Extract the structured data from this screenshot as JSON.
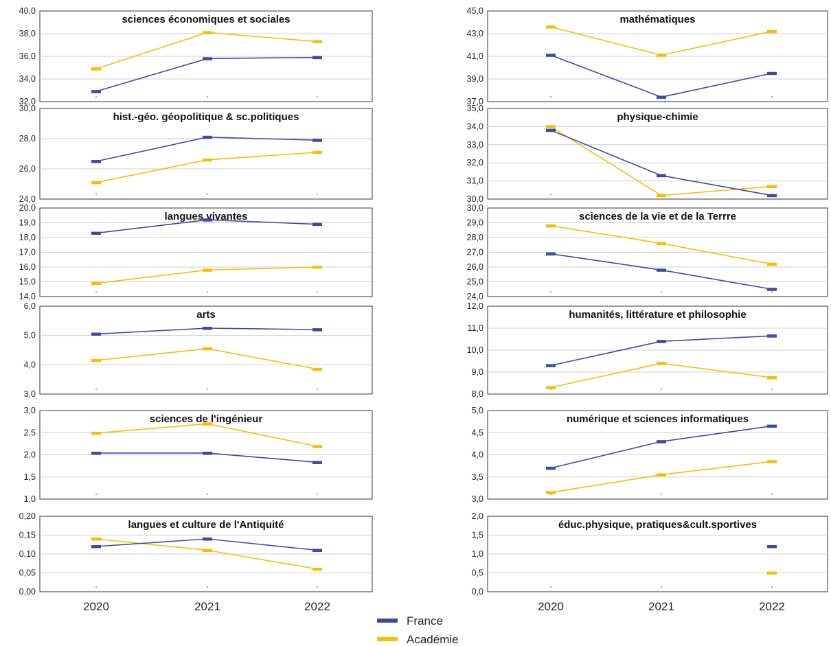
{
  "legend": [
    {
      "label": "France",
      "color": "#3b4ba0"
    },
    {
      "label": "Académie",
      "color": "#f5c000"
    }
  ],
  "x_labels": [
    "2020",
    "2021",
    "2022"
  ],
  "chart_data": [
    {
      "type": "line",
      "title": "sciences économiques et sociales",
      "categories": [
        "2020",
        "2021",
        "2022"
      ],
      "ylim": [
        32,
        40
      ],
      "yticks": [
        "32,0",
        "34,0",
        "36,0",
        "38,0",
        "40,0"
      ],
      "series": [
        {
          "name": "France",
          "values": [
            32.9,
            35.8,
            35.9
          ]
        },
        {
          "name": "Académie",
          "values": [
            34.9,
            38.1,
            37.3
          ]
        }
      ]
    },
    {
      "type": "line",
      "title": "mathématiques",
      "categories": [
        "2020",
        "2021",
        "2022"
      ],
      "ylim": [
        37,
        45
      ],
      "yticks": [
        "37,0",
        "39,0",
        "41,0",
        "43,0",
        "45,0"
      ],
      "series": [
        {
          "name": "France",
          "values": [
            41.1,
            37.4,
            39.5
          ]
        },
        {
          "name": "Académie",
          "values": [
            43.6,
            41.1,
            43.2
          ]
        }
      ]
    },
    {
      "type": "line",
      "title": "hist.-géo. géopolitique & sc.politiques",
      "categories": [
        "2020",
        "2021",
        "2022"
      ],
      "ylim": [
        24,
        30
      ],
      "yticks": [
        "24,0",
        "26,0",
        "28,0",
        "30,0"
      ],
      "series": [
        {
          "name": "France",
          "values": [
            26.5,
            28.1,
            27.9
          ]
        },
        {
          "name": "Académie",
          "values": [
            25.1,
            26.6,
            27.1
          ]
        }
      ]
    },
    {
      "type": "line",
      "title": "physique-chimie",
      "categories": [
        "2020",
        "2021",
        "2022"
      ],
      "ylim": [
        30,
        35
      ],
      "yticks": [
        "30,0",
        "31,0",
        "32,0",
        "33,0",
        "34,0",
        "35,0"
      ],
      "series": [
        {
          "name": "France",
          "values": [
            33.8,
            31.3,
            30.2
          ]
        },
        {
          "name": "Académie",
          "values": [
            34.0,
            30.2,
            30.7
          ]
        }
      ]
    },
    {
      "type": "line",
      "title": "langues vivantes",
      "categories": [
        "2020",
        "2021",
        "2022"
      ],
      "ylim": [
        14,
        20
      ],
      "yticks": [
        "14,0",
        "15,0",
        "16,0",
        "17,0",
        "18,0",
        "19,0",
        "20,0"
      ],
      "series": [
        {
          "name": "France",
          "values": [
            18.3,
            19.2,
            18.9
          ]
        },
        {
          "name": "Académie",
          "values": [
            14.9,
            15.8,
            16.0
          ]
        }
      ]
    },
    {
      "type": "line",
      "title": "sciences de la vie et de la Terrre",
      "categories": [
        "2020",
        "2021",
        "2022"
      ],
      "ylim": [
        24,
        30
      ],
      "yticks": [
        "24,0",
        "25,0",
        "26,0",
        "27,0",
        "28,0",
        "29,0",
        "30,0"
      ],
      "series": [
        {
          "name": "France",
          "values": [
            26.9,
            25.8,
            24.5
          ]
        },
        {
          "name": "Académie",
          "values": [
            28.8,
            27.6,
            26.2
          ]
        }
      ]
    },
    {
      "type": "line",
      "title": "arts",
      "categories": [
        "2020",
        "2021",
        "2022"
      ],
      "ylim": [
        3,
        6
      ],
      "yticks": [
        "3,0",
        "4,0",
        "5,0",
        "6,0"
      ],
      "series": [
        {
          "name": "France",
          "values": [
            5.05,
            5.25,
            5.2
          ]
        },
        {
          "name": "Académie",
          "values": [
            4.15,
            4.55,
            3.85
          ]
        }
      ]
    },
    {
      "type": "line",
      "title": "humanités, littérature et philosophie",
      "categories": [
        "2020",
        "2021",
        "2022"
      ],
      "ylim": [
        8,
        12
      ],
      "yticks": [
        "8,0",
        "9,0",
        "10,0",
        "11,0",
        "12,0"
      ],
      "series": [
        {
          "name": "France",
          "values": [
            9.3,
            10.4,
            10.65
          ]
        },
        {
          "name": "Académie",
          "values": [
            8.3,
            9.4,
            8.75
          ]
        }
      ]
    },
    {
      "type": "line",
      "title": "sciences de l'ingénieur",
      "categories": [
        "2020",
        "2021",
        "2022"
      ],
      "ylim": [
        1,
        3
      ],
      "yticks": [
        "1,0",
        "1,5",
        "2,0",
        "2,5",
        "3,0"
      ],
      "series": [
        {
          "name": "France",
          "values": [
            2.04,
            2.04,
            1.83
          ]
        },
        {
          "name": "Académie",
          "values": [
            2.49,
            2.7,
            2.19
          ]
        }
      ]
    },
    {
      "type": "line",
      "title": "numérique et sciences informatiques",
      "categories": [
        "2020",
        "2021",
        "2022"
      ],
      "ylim": [
        3,
        5
      ],
      "yticks": [
        "3,0",
        "3,5",
        "4,0",
        "4,5",
        "5,0"
      ],
      "series": [
        {
          "name": "France",
          "values": [
            3.7,
            4.3,
            4.65
          ]
        },
        {
          "name": "Académie",
          "values": [
            3.15,
            3.55,
            3.85
          ]
        }
      ]
    },
    {
      "type": "line",
      "title": "langues et culture de l'Antiquité",
      "categories": [
        "2020",
        "2021",
        "2022"
      ],
      "ylim": [
        0,
        0.2
      ],
      "yticks": [
        "0,00",
        "0,05",
        "0,10",
        "0,15",
        "0,20"
      ],
      "series": [
        {
          "name": "France",
          "values": [
            0.12,
            0.14,
            0.11
          ]
        },
        {
          "name": "Académie",
          "values": [
            0.14,
            0.11,
            0.06
          ]
        }
      ]
    },
    {
      "type": "line",
      "title": "éduc.physique, pratiques&cult.sportives",
      "categories": [
        "2020",
        "2021",
        "2022"
      ],
      "ylim": [
        0,
        2
      ],
      "yticks": [
        "0,0",
        "0,5",
        "1,0",
        "1,5",
        "2,0"
      ],
      "series": [
        {
          "name": "France",
          "values": [
            null,
            null,
            1.2
          ]
        },
        {
          "name": "Académie",
          "values": [
            null,
            null,
            0.5
          ]
        }
      ]
    }
  ]
}
